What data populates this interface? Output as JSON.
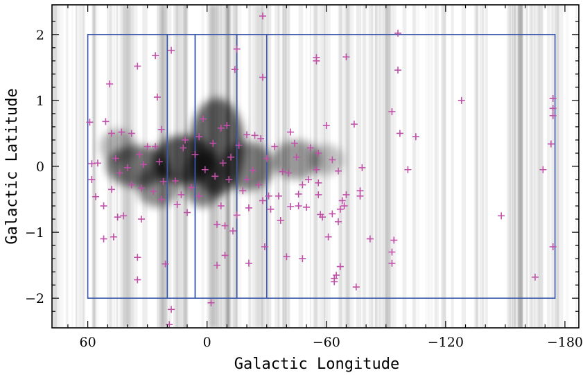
{
  "chart_data": {
    "type": "scatter",
    "title": "",
    "xlabel": "Galactic Longitude",
    "ylabel": "Galactic Latitude",
    "xlim": [
      78,
      -187
    ],
    "ylim": [
      -2.45,
      2.45
    ],
    "x_ticks": [
      60,
      0,
      -60,
      -120,
      -180
    ],
    "x_tick_labels": [
      "60",
      "0",
      "−60",
      "−120",
      "−180"
    ],
    "y_ticks": [
      2,
      1,
      0,
      -1,
      -2
    ],
    "y_tick_labels": [
      "2",
      "1",
      "0",
      "−1",
      "−2"
    ],
    "grid": false,
    "legend": "none",
    "marker": "plus",
    "colors": {
      "points": "#c050a8",
      "survey_outline": "#3a56a8",
      "background": "#ffffff"
    },
    "survey_regions": [
      {
        "l_range": [
          60,
          20
        ],
        "b_range": [
          -2,
          2
        ]
      },
      {
        "l_range": [
          20,
          6
        ],
        "b_range": [
          -2,
          2
        ]
      },
      {
        "l_range": [
          6,
          -15
        ],
        "b_range": [
          -2,
          2
        ]
      },
      {
        "l_range": [
          -15,
          -30
        ],
        "b_range": [
          -2,
          2
        ]
      },
      {
        "l_range": [
          -30,
          -175
        ],
        "b_range": [
          -2,
          2
        ]
      }
    ],
    "points": [
      [
        49,
        1.25
      ],
      [
        35,
        1.52
      ],
      [
        26,
        1.68
      ],
      [
        18,
        1.76
      ],
      [
        -15,
        1.78
      ],
      [
        -14,
        1.47
      ],
      [
        -28,
        1.35
      ],
      [
        -55,
        1.65
      ],
      [
        -55,
        1.6
      ],
      [
        -70,
        1.66
      ],
      [
        -96,
        2.02
      ],
      [
        -96,
        1.46
      ],
      [
        -93,
        0.83
      ],
      [
        -97,
        0.5
      ],
      [
        -105,
        0.45
      ],
      [
        -128,
        1.0
      ],
      [
        -174,
        1.03
      ],
      [
        -174,
        0.88
      ],
      [
        -174,
        0.77
      ],
      [
        -173,
        0.34
      ],
      [
        -169,
        -0.05
      ],
      [
        -101,
        -0.05
      ],
      [
        -148,
        -0.75
      ],
      [
        -174,
        -1.22
      ],
      [
        -165,
        -1.68
      ],
      [
        -94,
        -1.12
      ],
      [
        -93,
        -1.3
      ],
      [
        -93,
        -1.47
      ],
      [
        -82,
        -1.1
      ],
      [
        -75,
        -1.83
      ],
      [
        -67,
        -1.52
      ],
      [
        -64,
        -1.7
      ],
      [
        -64,
        -1.75
      ],
      [
        -65,
        -1.65
      ],
      [
        -48,
        -1.4
      ],
      [
        -40,
        -1.37
      ],
      [
        -29,
        -1.22
      ],
      [
        -21,
        -1.47
      ],
      [
        -9,
        -1.35
      ],
      [
        -5,
        -1.5
      ],
      [
        -2,
        -2.07
      ],
      [
        21,
        -1.48
      ],
      [
        35,
        -1.38
      ],
      [
        35,
        -1.72
      ],
      [
        52,
        -1.1
      ],
      [
        47,
        -1.07
      ],
      [
        18,
        -2.17
      ],
      [
        19,
        -2.4
      ],
      [
        -28,
        2.28
      ],
      [
        25,
        1.05
      ],
      [
        -74,
        0.64
      ],
      [
        -60,
        0.62
      ],
      [
        -63,
        0.1
      ],
      [
        -66,
        -0.07
      ],
      [
        -78,
        -0.02
      ],
      [
        -70,
        -0.43
      ],
      [
        -77,
        -0.37
      ],
      [
        -77,
        -0.45
      ],
      [
        -68,
        -0.52
      ],
      [
        -69,
        -0.6
      ],
      [
        -67,
        -0.65
      ],
      [
        -66,
        -0.84
      ],
      [
        -63,
        -0.72
      ],
      [
        -61,
        -1.07
      ],
      [
        -58,
        -0.77
      ],
      [
        -57,
        -0.73
      ],
      [
        -50,
        -0.62
      ],
      [
        -46,
        -0.6
      ],
      [
        -42,
        -0.61
      ],
      [
        -37,
        -0.82
      ],
      [
        -28,
        -0.52
      ],
      [
        -21,
        -0.63
      ],
      [
        -15,
        -0.74
      ],
      [
        -13,
        -0.98
      ],
      [
        -9,
        -0.9
      ],
      [
        -5,
        -0.88
      ],
      [
        10,
        -0.7
      ],
      [
        23,
        -0.5
      ],
      [
        33,
        -0.8
      ],
      [
        42,
        -0.75
      ],
      [
        45,
        -0.77
      ],
      [
        52,
        -0.6
      ],
      [
        56,
        -0.46
      ],
      [
        58,
        -0.2
      ],
      [
        58,
        0.04
      ],
      [
        55,
        0.05
      ],
      [
        59,
        0.67
      ],
      [
        51,
        0.68
      ],
      [
        48,
        0.5
      ],
      [
        43,
        0.52
      ],
      [
        38,
        0.5
      ],
      [
        30,
        0.3
      ],
      [
        23,
        0.56
      ],
      [
        12,
        0.28
      ],
      [
        4,
        0.45
      ],
      [
        -10,
        0.62
      ],
      [
        -16,
        0.32
      ],
      [
        -24,
        0.47
      ],
      [
        -34,
        0.3
      ],
      [
        -44,
        0.35
      ],
      [
        -52,
        0.28
      ],
      [
        -56,
        0.2
      ],
      [
        -55,
        -0.05
      ],
      [
        -56,
        -0.25
      ],
      [
        -56,
        -0.43
      ],
      [
        -48,
        -0.28
      ],
      [
        -41,
        -0.1
      ],
      [
        -31,
        -0.45
      ],
      [
        -20,
        -0.2
      ],
      [
        -7,
        -0.6
      ],
      [
        4,
        -0.45
      ],
      [
        15,
        -0.58
      ],
      [
        27,
        -0.38
      ],
      [
        38,
        -0.28
      ],
      [
        44,
        -0.1
      ],
      [
        48,
        -0.35
      ],
      [
        46,
        0.12
      ],
      [
        40,
        -0.02
      ],
      [
        33,
        -0.33
      ],
      [
        24,
        0.07
      ],
      [
        16,
        -0.22
      ],
      [
        6,
        0.18
      ],
      [
        -4,
        -0.15
      ],
      [
        -12,
        0.14
      ],
      [
        -23,
        -0.06
      ],
      [
        -30,
        0.12
      ],
      [
        -38,
        -0.08
      ],
      [
        -45,
        0.14
      ],
      [
        -51,
        -0.2
      ],
      [
        -3,
        0.35
      ],
      [
        11,
        0.4
      ],
      [
        32,
        0.03
      ],
      [
        22,
        -0.23
      ],
      [
        -18,
        -0.37
      ],
      [
        -26,
        -0.28
      ],
      [
        -36,
        -0.45
      ],
      [
        -46,
        -0.42
      ],
      [
        1,
        -0.05
      ],
      [
        -8,
        0.05
      ],
      [
        -27,
        0.42
      ],
      [
        -42,
        0.52
      ],
      [
        2,
        0.72
      ],
      [
        -20,
        0.48
      ],
      [
        26,
        0.3
      ],
      [
        34,
        0.18
      ],
      [
        -7,
        0.58
      ],
      [
        13,
        -0.43
      ],
      [
        -32,
        -0.65
      ],
      [
        8,
        -0.32
      ],
      [
        -11,
        -0.2
      ]
    ]
  }
}
